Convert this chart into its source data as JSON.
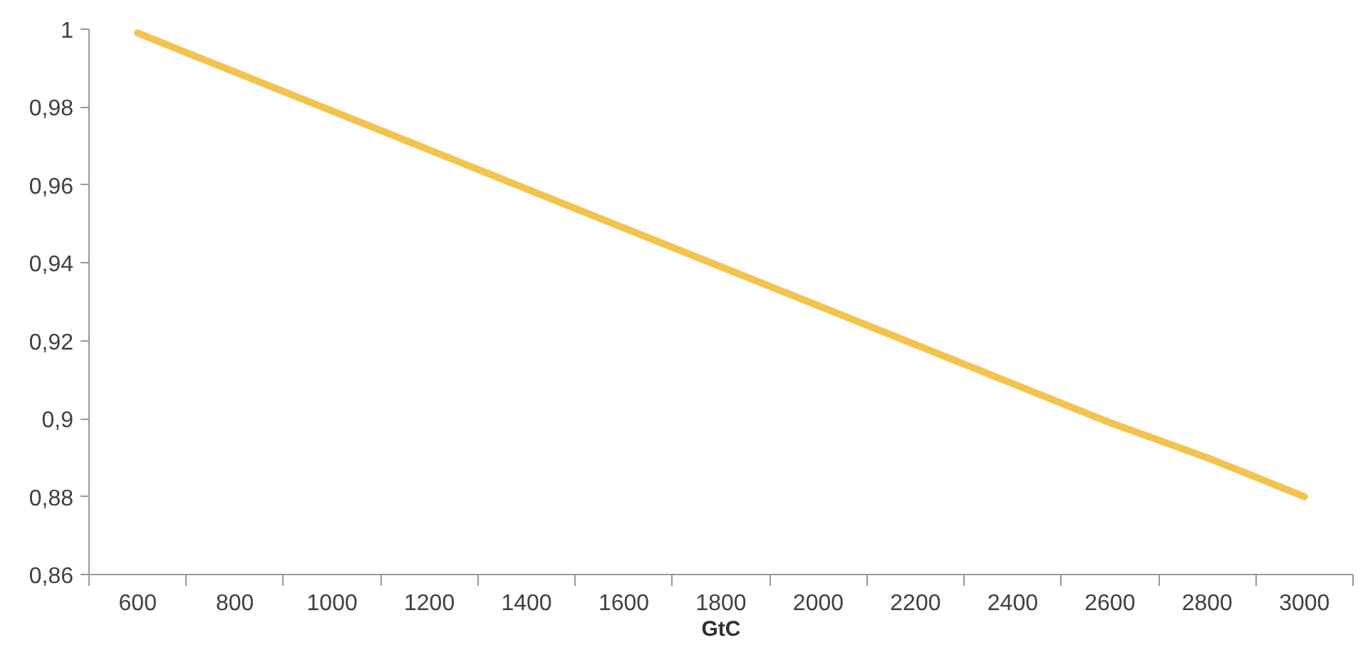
{
  "chart_data": {
    "type": "line",
    "xlabel": "GtC",
    "categories": [
      "600",
      "800",
      "1000",
      "1200",
      "1400",
      "1600",
      "1800",
      "2000",
      "2200",
      "2400",
      "2600",
      "2800",
      "3000"
    ],
    "series": [
      {
        "color": "#f2c44e",
        "values": [
          0.999,
          0.989,
          0.979,
          0.969,
          0.959,
          0.949,
          0.939,
          0.929,
          0.919,
          0.909,
          0.899,
          0.89,
          0.88
        ]
      }
    ],
    "ylim": [
      0.86,
      1
    ],
    "yticks": [
      {
        "value": 0.86,
        "label": "0,86"
      },
      {
        "value": 0.88,
        "label": "0,88"
      },
      {
        "value": 0.9,
        "label": "0,9"
      },
      {
        "value": 0.92,
        "label": "0,92"
      },
      {
        "value": 0.94,
        "label": "0,94"
      },
      {
        "value": 0.96,
        "label": "0,96"
      },
      {
        "value": 0.98,
        "label": "0,98"
      },
      {
        "value": 1,
        "label": "1"
      }
    ],
    "grid": false,
    "marker": "none",
    "line_style": "solid"
  }
}
